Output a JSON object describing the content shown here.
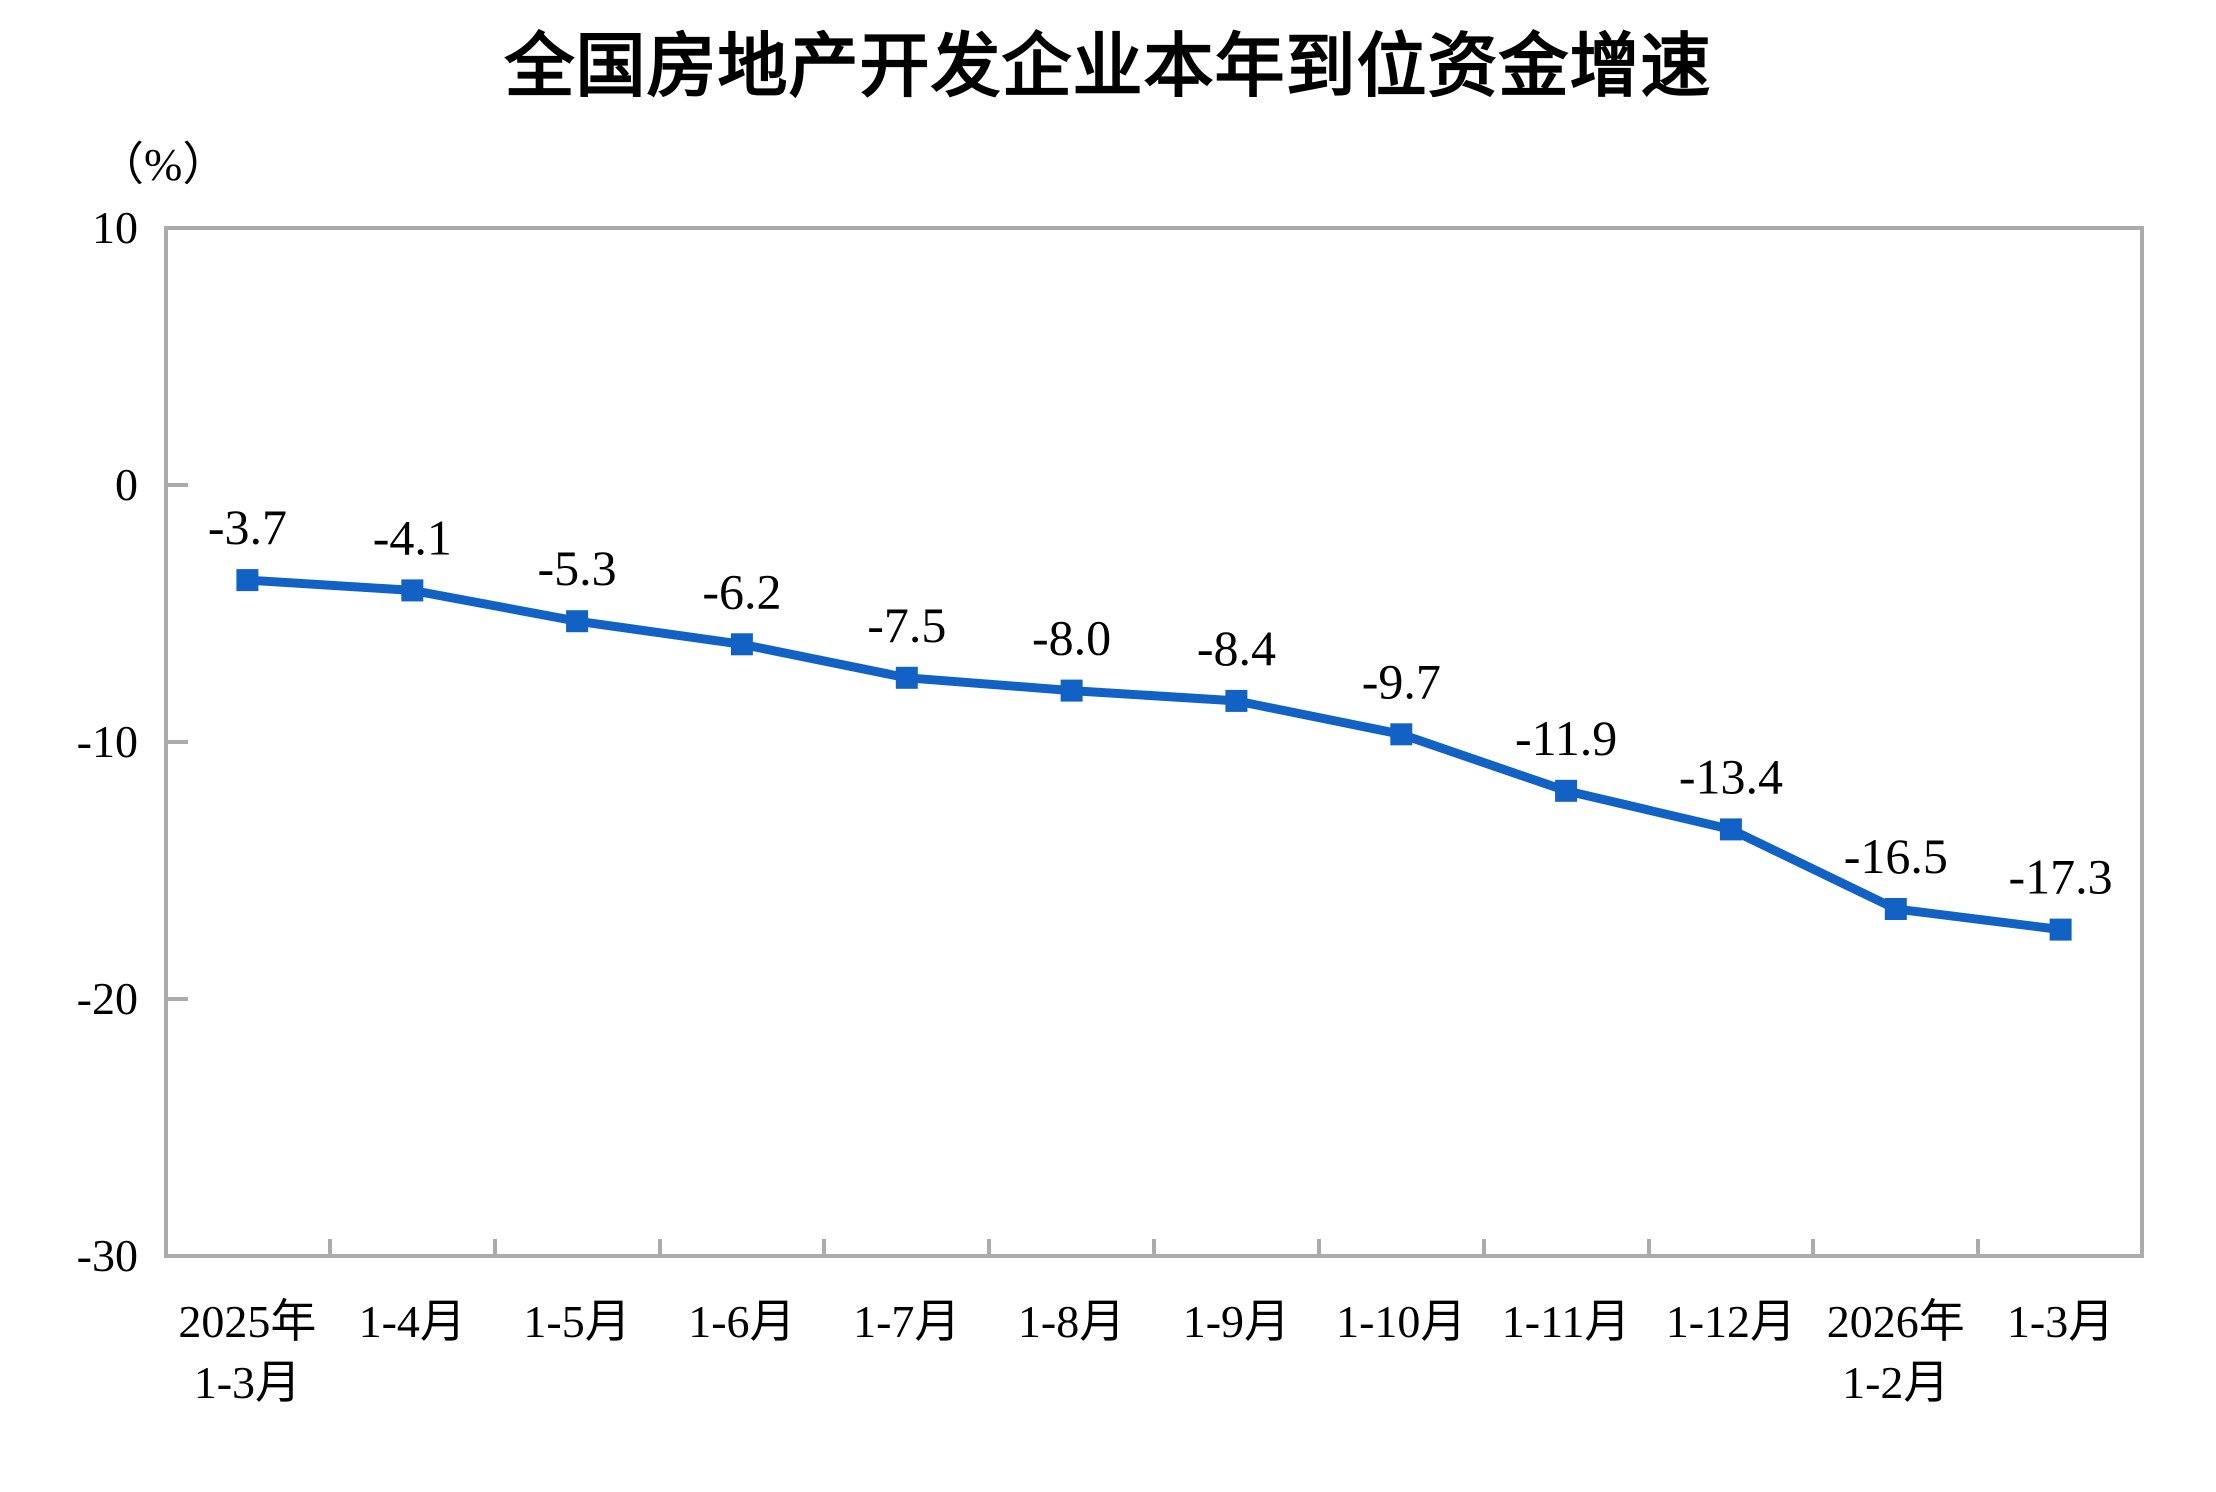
{
  "chart_data": {
    "type": "line",
    "title": "全国房地产开发企业本年到位资金增速",
    "unit_label": "（%）",
    "categories": [
      "2025年\n1-3月",
      "1-4月",
      "1-5月",
      "1-6月",
      "1-7月",
      "1-8月",
      "1-9月",
      "1-10月",
      "1-11月",
      "1-12月",
      "2026年\n1-2月",
      "1-3月"
    ],
    "values": [
      -3.7,
      -4.1,
      -5.3,
      -6.2,
      -7.5,
      -8.0,
      -8.4,
      -9.7,
      -11.9,
      -13.4,
      -16.5,
      -17.3
    ],
    "data_labels": [
      "-3.7",
      "-4.1",
      "-5.3",
      "-6.2",
      "-7.5",
      "-8.0",
      "-8.4",
      "-9.7",
      "-11.9",
      "-13.4",
      "-16.5",
      "-17.3"
    ],
    "ylim": [
      -30,
      10
    ],
    "yticks": [
      10,
      0,
      -10,
      -20,
      -30
    ],
    "grid": "off",
    "legend_position": "none",
    "line_color": "#1261c4",
    "marker": "square",
    "axis_color": "#ababab",
    "text_color": "#000000",
    "background": "#ffffff"
  }
}
